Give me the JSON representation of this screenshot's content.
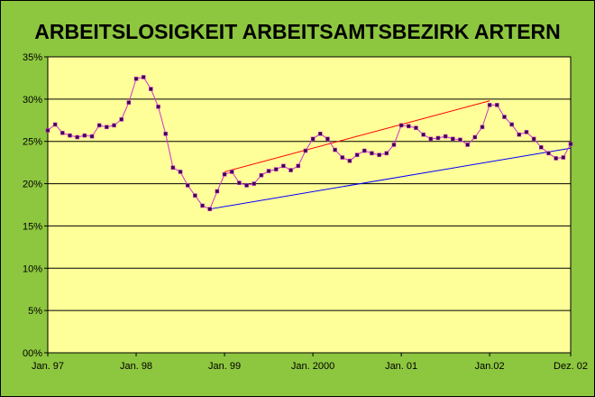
{
  "chart_data": {
    "type": "line",
    "title": "ARBEITSLOSIGKEIT ARBEITSAMTSBEZIRK ARTERN",
    "xlabel": "",
    "ylabel": "",
    "ylim": [
      0,
      35
    ],
    "y_ticks": [
      0,
      5,
      10,
      15,
      20,
      25,
      30,
      35
    ],
    "y_tick_labels": [
      "00%",
      "5%",
      "10%",
      "15%",
      "20%",
      "25%",
      "30%",
      "35%"
    ],
    "x_range": [
      0,
      71
    ],
    "x_tick_positions": [
      0,
      12,
      24,
      36,
      48,
      60,
      71
    ],
    "x_tick_labels": [
      "Jan. 97",
      "Jan. 98",
      "Jan. 99",
      "Jan. 2000",
      "Jan. 01",
      "Jan.02",
      "Dez. 02"
    ],
    "grid": true,
    "background_color": "#ffff99",
    "frame_color": "#8dc63f",
    "series": [
      {
        "color": "#cc33cc",
        "marker_color": "#33004d",
        "values": [
          26.3,
          27.0,
          26.0,
          25.7,
          25.5,
          25.7,
          25.6,
          26.9,
          26.7,
          26.9,
          27.6,
          29.6,
          32.4,
          32.6,
          31.2,
          29.1,
          25.9,
          21.9,
          21.4,
          19.8,
          18.6,
          17.4,
          17.0,
          19.1,
          21.1,
          21.4,
          20.1,
          19.8,
          20.0,
          21.0,
          21.5,
          21.7,
          22.1,
          21.6,
          22.1,
          23.9,
          25.3,
          25.9,
          25.3,
          24.0,
          23.1,
          22.7,
          23.4,
          23.9,
          23.6,
          23.4,
          23.6,
          24.6,
          26.9,
          26.8,
          26.6,
          25.8,
          25.3,
          25.4,
          25.6,
          25.3,
          25.2,
          24.6,
          25.5,
          26.7,
          29.3,
          29.3,
          27.9,
          27.0,
          25.8,
          26.1,
          25.3,
          24.3,
          23.6,
          23.0,
          23.1,
          24.7
        ]
      }
    ],
    "trend_lines": [
      {
        "color": "#ff0000",
        "x": [
          24,
          60
        ],
        "y": [
          21.4,
          29.8
        ]
      },
      {
        "color": "#0000ff",
        "x": [
          22,
          71
        ],
        "y": [
          17.0,
          24.2
        ]
      }
    ]
  }
}
